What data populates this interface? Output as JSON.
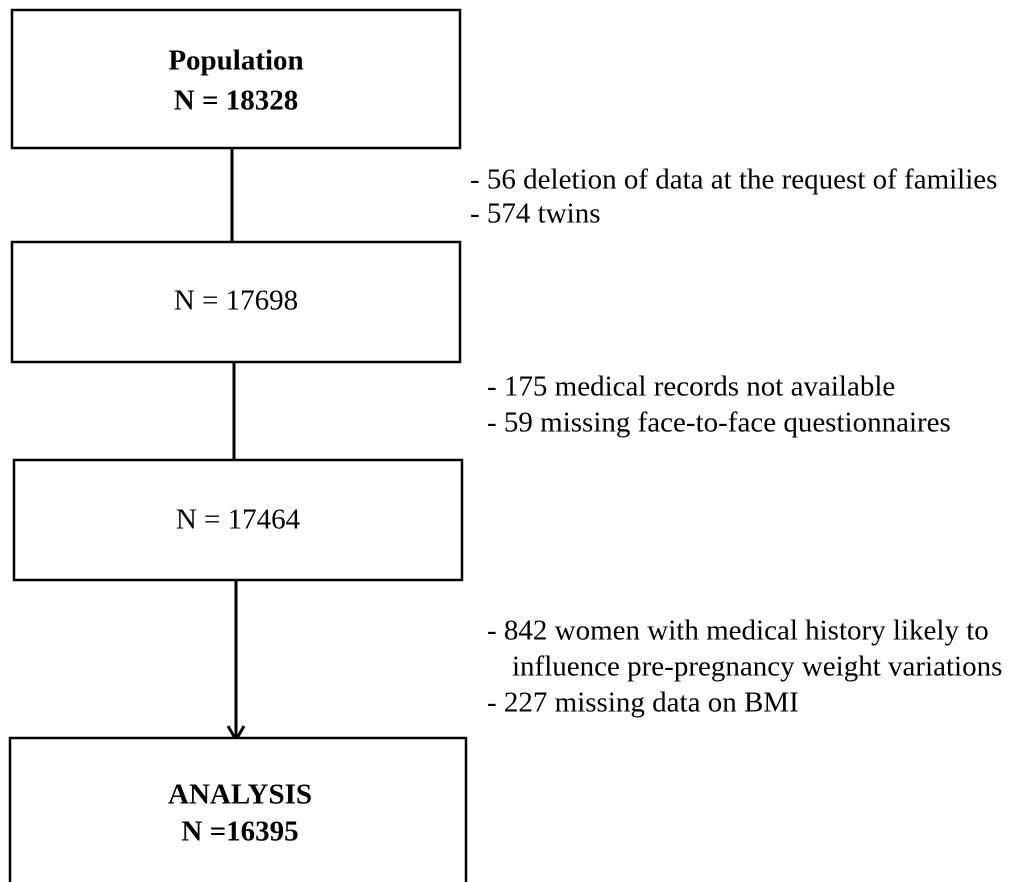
{
  "nodes": [
    {
      "lines": [
        "Population",
        "N = 18328"
      ]
    },
    {
      "lines": [
        "N = 17698"
      ]
    },
    {
      "lines": [
        "N = 17464"
      ]
    },
    {
      "lines": [
        "ANALYSIS",
        "N =16395"
      ]
    }
  ],
  "exclusions": [
    [
      "- 56 deletion of data at the request of families",
      "- 574 twins"
    ],
    [
      "- 175 medical records not available",
      "- 59 missing face-to-face questionnaires"
    ],
    [
      "- 842 women with medical history likely to",
      "influence pre-pregnancy weight variations",
      "- 227 missing data on BMI"
    ]
  ]
}
